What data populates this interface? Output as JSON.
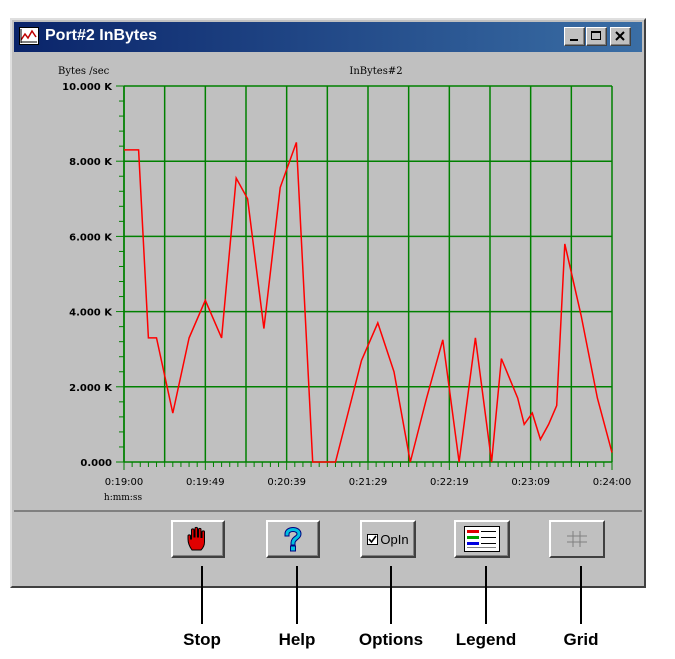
{
  "window": {
    "title": "Port#2 InBytes",
    "title_buttons": [
      "minimize-icon",
      "maximize-icon",
      "close-icon"
    ]
  },
  "chart_data": {
    "type": "line",
    "title": "InBytes#2",
    "ylabel": "Bytes /sec",
    "xlabel": "h:mm:ss",
    "ylim": [
      0,
      10000
    ],
    "yticks": [
      0,
      2000,
      4000,
      6000,
      8000,
      10000
    ],
    "ytick_labels": [
      "0.000",
      "2.000 K",
      "4.000 K",
      "6.000 K",
      "8.000 K",
      "10.000 K"
    ],
    "xlim": [
      "0:19:00",
      "0:24:00"
    ],
    "xtick_labels": [
      "0:19:00",
      "0:19:49",
      "0:20:39",
      "0:21:29",
      "0:22:19",
      "0:23:09",
      "0:24:00"
    ],
    "grid": true,
    "colors": {
      "line": "#ff0000",
      "grid": "#008000",
      "background": "#c0c0c0"
    },
    "series": [
      {
        "x": [
          "0:19:00",
          "0:19:09",
          "0:19:15",
          "0:19:20",
          "0:19:30",
          "0:19:40",
          "0:19:50",
          "0:20:00",
          "0:20:09",
          "0:20:16",
          "0:20:26",
          "0:20:36",
          "0:20:46",
          "0:20:56",
          "0:21:06",
          "0:21:10",
          "0:21:26",
          "0:21:36",
          "0:21:46",
          "0:21:56",
          "0:22:06",
          "0:22:16",
          "0:22:26",
          "0:22:36",
          "0:22:46",
          "0:22:52",
          "0:23:02",
          "0:23:06",
          "0:23:11",
          "0:23:16",
          "0:23:21",
          "0:23:26",
          "0:23:31",
          "0:23:41",
          "0:23:51",
          "0:24:00"
        ],
        "values": [
          8300,
          8300,
          3300,
          3300,
          1300,
          3300,
          4300,
          3300,
          7550,
          7000,
          3550,
          7300,
          8500,
          0,
          0,
          0,
          2700,
          3700,
          2400,
          0,
          1700,
          3250,
          0,
          3300,
          0,
          2750,
          1700,
          1000,
          1300,
          600,
          1000,
          1500,
          5800,
          3900,
          1700,
          250
        ]
      }
    ]
  },
  "buttons": {
    "stop": {
      "icon": "stop-hand-icon"
    },
    "help": {
      "icon": "help-question-icon"
    },
    "options": {
      "label": "OpIn",
      "icon": "checkbox-icon"
    },
    "legend": {
      "icon": "legend-icon"
    },
    "grid": {
      "icon": "grid-icon",
      "enabled": false
    }
  },
  "callouts": {
    "stop": "Stop",
    "help": "Help",
    "options": "Options",
    "legend": "Legend",
    "grid": "Grid"
  }
}
